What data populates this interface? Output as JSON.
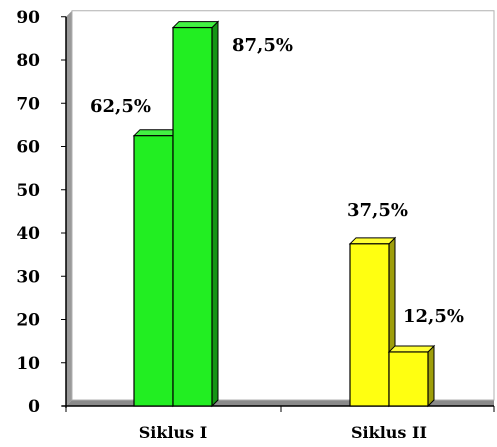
{
  "chart_data": {
    "type": "bar",
    "categories": [
      "Siklus I",
      "Siklus II"
    ],
    "series": [
      {
        "values": [
          62.5,
          37.5
        ]
      },
      {
        "values": [
          87.5,
          12.5
        ]
      }
    ],
    "data_labels": [
      [
        "62,5%",
        "37,5%"
      ],
      [
        "87,5%",
        "12,5%"
      ]
    ],
    "category_colors": [
      "#22ee22",
      "#ffff11"
    ],
    "y_ticks": [
      "0",
      "10",
      "20",
      "30",
      "40",
      "50",
      "60",
      "70",
      "80",
      "90"
    ],
    "ylim": [
      0,
      90
    ],
    "grid": false,
    "legend": "none",
    "style": "3d-bar"
  }
}
